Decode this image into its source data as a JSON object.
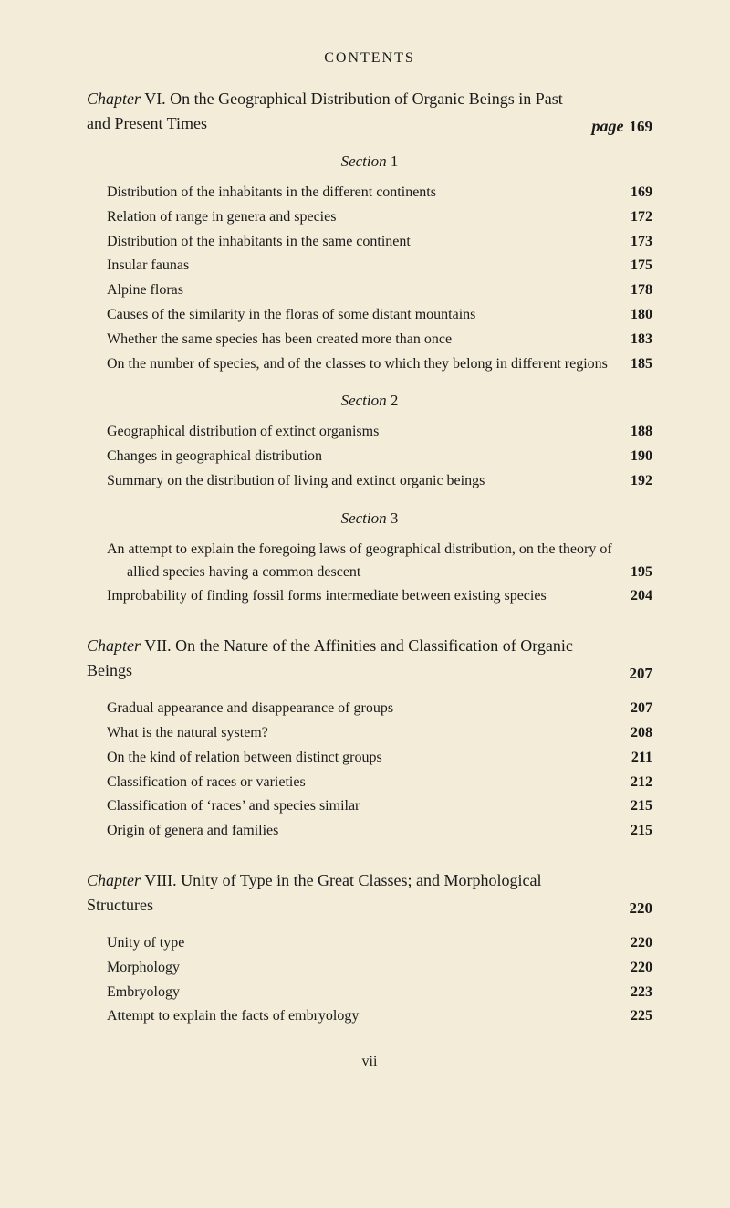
{
  "header": "CONTENTS",
  "page_label": "page",
  "footnum": "vii",
  "chapters": [
    {
      "prefix": "Chapter",
      "num": "VI.",
      "title": "On the Geographical Distribution of Organic Beings in Past and Present Times",
      "show_page_label": true,
      "page": "169",
      "sections": [
        {
          "heading": "Section",
          "num": "1",
          "entries": [
            {
              "text": "Distribution of the inhabitants in the different continents",
              "page": "169"
            },
            {
              "text": "Relation of range in genera and species",
              "page": "172"
            },
            {
              "text": "Distribution of the inhabitants in the same continent",
              "page": "173"
            },
            {
              "text": "Insular faunas",
              "page": "175"
            },
            {
              "text": "Alpine floras",
              "page": "178"
            },
            {
              "text": "Causes of the similarity in the floras of some distant mountains",
              "page": "180"
            },
            {
              "text": "Whether the same species has been created more than once",
              "page": "183"
            },
            {
              "text": "On the number of species, and of the classes to which they belong in different regions",
              "page": "185"
            }
          ]
        },
        {
          "heading": "Section",
          "num": "2",
          "entries": [
            {
              "text": "Geographical distribution of extinct organisms",
              "page": "188"
            },
            {
              "text": "Changes in geographical distribution",
              "page": "190"
            },
            {
              "text": "Summary on the distribution of living and extinct organic beings",
              "page": "192"
            }
          ]
        },
        {
          "heading": "Section",
          "num": "3",
          "entries": [
            {
              "text": "An attempt to explain the foregoing laws of geographical distribution, on the theory of allied species having a common descent",
              "page": "195"
            },
            {
              "text": "Improbability of finding fossil forms intermediate between existing species",
              "page": "204"
            }
          ]
        }
      ]
    },
    {
      "prefix": "Chapter",
      "num": "VII.",
      "title": "On the Nature of the Affinities and Classification of Organic Beings",
      "show_page_label": false,
      "page": "207",
      "sections": [
        {
          "heading": null,
          "num": null,
          "entries": [
            {
              "text": "Gradual appearance and disappearance of groups",
              "page": "207"
            },
            {
              "text": "What is the natural system?",
              "page": "208"
            },
            {
              "text": "On the kind of relation between distinct groups",
              "page": "211"
            },
            {
              "text": "Classification of races or varieties",
              "page": "212"
            },
            {
              "text": "Classification of ‘races’ and species similar",
              "page": "215"
            },
            {
              "text": "Origin of genera and families",
              "page": "215"
            }
          ]
        }
      ]
    },
    {
      "prefix": "Chapter",
      "num": "VIII.",
      "title": "Unity of Type in the Great Classes; and Morphological Structures",
      "show_page_label": false,
      "page": "220",
      "sections": [
        {
          "heading": null,
          "num": null,
          "entries": [
            {
              "text": "Unity of type",
              "page": "220"
            },
            {
              "text": "Morphology",
              "page": "220"
            },
            {
              "text": "Embryology",
              "page": "223"
            },
            {
              "text": "Attempt to explain the facts of embryology",
              "page": "225"
            }
          ]
        }
      ]
    }
  ]
}
